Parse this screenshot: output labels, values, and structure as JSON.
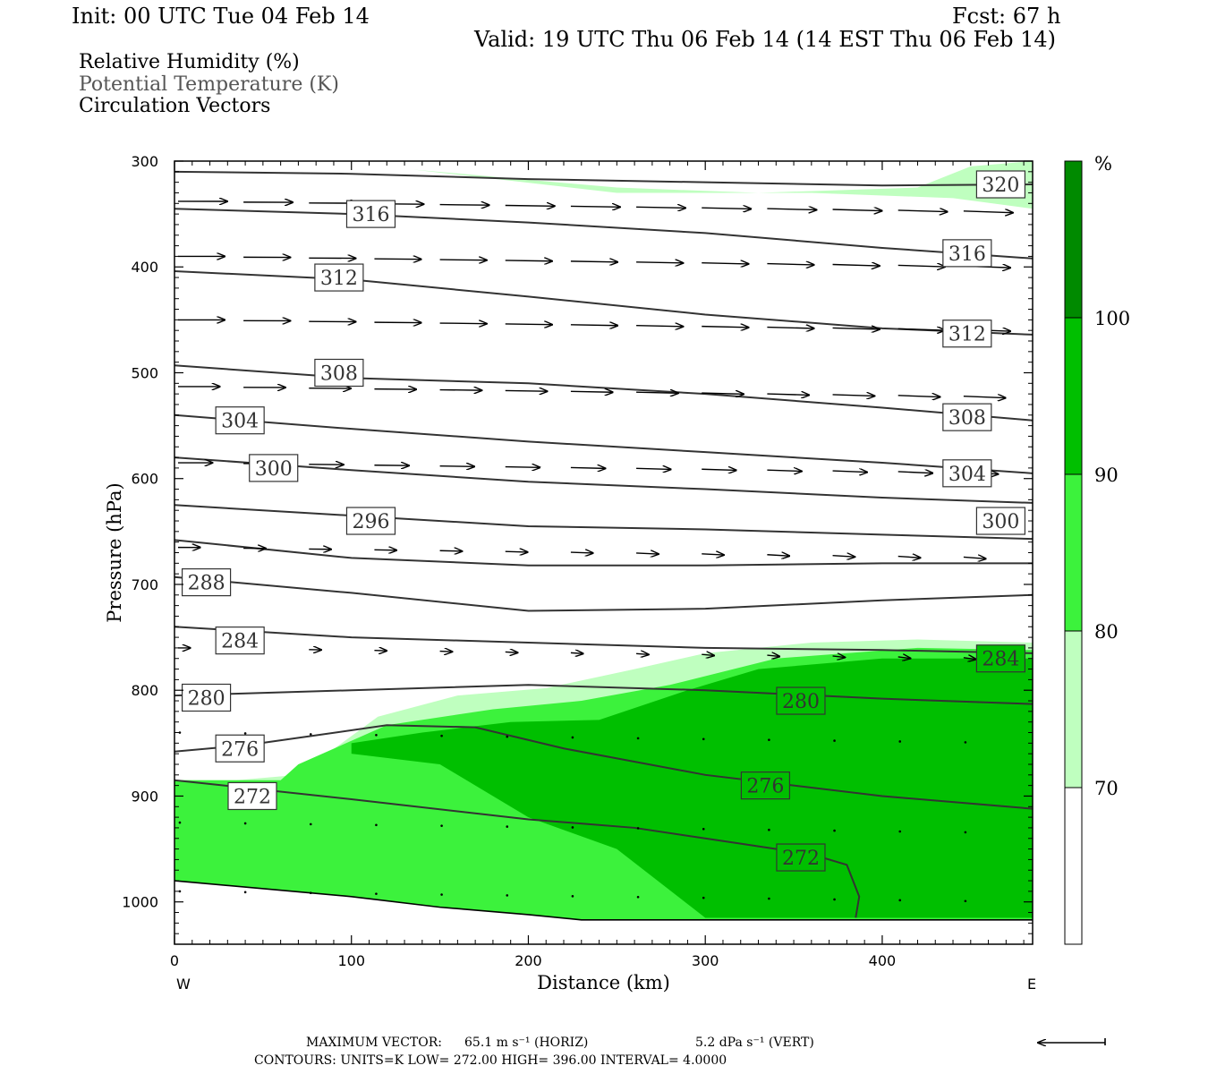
{
  "header": {
    "init": "Init: 00 UTC Tue 04 Feb 14",
    "fcst": "Fcst:   67 h",
    "valid": "Valid: 19 UTC Thu 06 Feb 14 (14 EST Thu 06 Feb 14)",
    "field1": "Relative Humidity (%)",
    "field2": "Potential Temperature (K)",
    "field3": "Circulation Vectors"
  },
  "footer": {
    "max_vector_label": "MAXIMUM VECTOR:",
    "max_horiz": "65.1 m s⁻¹ (HORIZ)",
    "max_vert": "5.2 dPa s⁻¹ (VERT)",
    "contours": "CONTOURS:  UNITS=K  LOW=  272.00        HIGH=  396.00        INTERVAL=     4.0000"
  },
  "colors": {
    "rh_70": "#bfffbf",
    "rh_80": "#3cf23c",
    "rh_90": "#00bf00",
    "rh_100": "#008a00",
    "contour": "#333333"
  },
  "chart_data": {
    "type": "cross-section",
    "xlabel": "Distance (km)",
    "ylabel": "Pressure (hPa)",
    "xlim": [
      0,
      485
    ],
    "ylim": [
      1040,
      300
    ],
    "x_ticks": [
      0,
      100,
      200,
      300,
      400
    ],
    "y_ticks": [
      300,
      400,
      500,
      600,
      700,
      800,
      900,
      1000
    ],
    "x_end_labels": {
      "left": "W",
      "right": "E"
    },
    "colorbar": {
      "unit": "%",
      "levels": [
        70,
        80,
        90,
        100
      ],
      "labels": [
        "70",
        "80",
        "90",
        "100"
      ]
    },
    "terrain_surface": [
      [
        0,
        980
      ],
      [
        100,
        995
      ],
      [
        150,
        1005
      ],
      [
        200,
        1012
      ],
      [
        230,
        1017
      ],
      [
        300,
        1017
      ],
      [
        400,
        1017
      ],
      [
        485,
        1017
      ]
    ],
    "rh_regions": [
      {
        "level": 70,
        "polygon": [
          [
            0,
            885
          ],
          [
            35,
            885
          ],
          [
            70,
            880
          ],
          [
            115,
            825
          ],
          [
            160,
            805
          ],
          [
            210,
            798
          ],
          [
            260,
            780
          ],
          [
            300,
            765
          ],
          [
            360,
            755
          ],
          [
            420,
            752
          ],
          [
            485,
            755
          ],
          [
            485,
            1040
          ],
          [
            0,
            1040
          ]
        ]
      },
      {
        "level": 80,
        "polygon": [
          [
            0,
            885
          ],
          [
            60,
            885
          ],
          [
            70,
            870
          ],
          [
            120,
            833
          ],
          [
            180,
            818
          ],
          [
            230,
            810
          ],
          [
            280,
            795
          ],
          [
            340,
            770
          ],
          [
            420,
            760
          ],
          [
            485,
            762
          ],
          [
            485,
            1018
          ],
          [
            0,
            1018
          ]
        ]
      },
      {
        "level": 90,
        "polygon": [
          [
            100,
            850
          ],
          [
            140,
            840
          ],
          [
            190,
            830
          ],
          [
            240,
            828
          ],
          [
            290,
            800
          ],
          [
            330,
            780
          ],
          [
            400,
            770
          ],
          [
            485,
            770
          ],
          [
            485,
            1015
          ],
          [
            300,
            1015
          ],
          [
            250,
            950
          ],
          [
            200,
            920
          ],
          [
            150,
            870
          ],
          [
            100,
            860
          ]
        ]
      },
      {
        "level": 70,
        "polygon": [
          [
            135,
            308
          ],
          [
            250,
            325
          ],
          [
            330,
            330
          ],
          [
            420,
            325
          ],
          [
            450,
            305
          ],
          [
            485,
            300
          ],
          [
            485,
            345
          ],
          [
            440,
            335
          ],
          [
            360,
            330
          ],
          [
            250,
            330
          ]
        ]
      }
    ],
    "theta_contours": [
      {
        "value": 272,
        "points": [
          [
            0,
            885
          ],
          [
            100,
            903
          ],
          [
            200,
            922
          ],
          [
            260,
            930
          ],
          [
            320,
            945
          ],
          [
            360,
            955
          ],
          [
            380,
            965
          ],
          [
            387,
            995
          ],
          [
            385,
            1015
          ]
        ],
        "label_x": 352
      },
      {
        "value": 276,
        "points": [
          [
            0,
            858
          ],
          [
            40,
            852
          ],
          [
            70,
            845
          ],
          [
            120,
            833
          ],
          [
            170,
            835
          ],
          [
            220,
            855
          ],
          [
            300,
            880
          ],
          [
            400,
            900
          ],
          [
            485,
            912
          ]
        ],
        "label_x": 322
      },
      {
        "value": 280,
        "points": [
          [
            0,
            805
          ],
          [
            100,
            800
          ],
          [
            200,
            795
          ],
          [
            300,
            800
          ],
          [
            400,
            808
          ],
          [
            485,
            813
          ]
        ],
        "label_x": 352
      },
      {
        "value": 284,
        "points": [
          [
            0,
            740
          ],
          [
            100,
            750
          ],
          [
            200,
            755
          ],
          [
            300,
            760
          ],
          [
            400,
            762
          ],
          [
            485,
            765
          ]
        ],
        "label_x": 453
      },
      {
        "value": 288,
        "points": [
          [
            0,
            693
          ],
          [
            100,
            708
          ],
          [
            200,
            725
          ],
          [
            300,
            723
          ],
          [
            400,
            715
          ],
          [
            485,
            710
          ]
        ],
        "label_x": 8
      },
      {
        "value": 292,
        "points": [
          [
            0,
            658
          ],
          [
            100,
            675
          ],
          [
            200,
            682
          ],
          [
            300,
            682
          ],
          [
            400,
            680
          ],
          [
            485,
            680
          ]
        ],
        "label_x": -100
      },
      {
        "value": 296,
        "points": [
          [
            0,
            625
          ],
          [
            100,
            635
          ],
          [
            200,
            645
          ],
          [
            300,
            648
          ],
          [
            400,
            653
          ],
          [
            485,
            657
          ]
        ],
        "label_x": 98
      },
      {
        "value": 300,
        "points": [
          [
            0,
            580
          ],
          [
            100,
            592
          ],
          [
            200,
            603
          ],
          [
            300,
            610
          ],
          [
            400,
            618
          ],
          [
            485,
            623
          ]
        ],
        "label_x": 453
      },
      {
        "value": 304,
        "points": [
          [
            0,
            540
          ],
          [
            100,
            553
          ],
          [
            200,
            565
          ],
          [
            300,
            575
          ],
          [
            400,
            585
          ],
          [
            485,
            595
          ]
        ],
        "label_x": 23
      },
      {
        "value": 308,
        "points": [
          [
            0,
            493
          ],
          [
            100,
            505
          ],
          [
            200,
            510
          ],
          [
            300,
            520
          ],
          [
            400,
            533
          ],
          [
            485,
            545
          ]
        ],
        "label_x": 80
      },
      {
        "value": 312,
        "points": [
          [
            0,
            404
          ],
          [
            100,
            412
          ],
          [
            200,
            428
          ],
          [
            300,
            445
          ],
          [
            400,
            458
          ],
          [
            485,
            464
          ]
        ],
        "label_x": 80
      },
      {
        "value": 316,
        "points": [
          [
            0,
            345
          ],
          [
            100,
            350
          ],
          [
            200,
            358
          ],
          [
            300,
            368
          ],
          [
            400,
            382
          ],
          [
            485,
            392
          ]
        ],
        "label_x": 98
      },
      {
        "value": 320,
        "points": [
          [
            0,
            310
          ],
          [
            100,
            312
          ],
          [
            200,
            317
          ],
          [
            300,
            320
          ],
          [
            400,
            323
          ],
          [
            485,
            322
          ]
        ],
        "label_x": 453
      }
    ],
    "contour_labels": [
      {
        "value": "272",
        "x": 44,
        "p": 900
      },
      {
        "value": "276",
        "x": 37,
        "p": 855
      },
      {
        "value": "280",
        "x": 18,
        "p": 807
      },
      {
        "value": "284",
        "x": 37,
        "p": 753
      },
      {
        "value": "288",
        "x": 18,
        "p": 698
      },
      {
        "value": "296",
        "x": 111,
        "p": 640
      },
      {
        "value": "300",
        "x": 56,
        "p": 590
      },
      {
        "value": "304",
        "x": 37,
        "p": 545
      },
      {
        "value": "308",
        "x": 93,
        "p": 500
      },
      {
        "value": "312",
        "x": 93,
        "p": 410
      },
      {
        "value": "316",
        "x": 111,
        "p": 350
      },
      {
        "value": "320",
        "x": 467,
        "p": 322
      },
      {
        "value": "316",
        "x": 448,
        "p": 387
      },
      {
        "value": "312",
        "x": 448,
        "p": 463
      },
      {
        "value": "308",
        "x": 448,
        "p": 542
      },
      {
        "value": "304",
        "x": 448,
        "p": 595
      },
      {
        "value": "300",
        "x": 467,
        "p": 640
      },
      {
        "value": "284",
        "x": 467,
        "p": 770
      },
      {
        "value": "280",
        "x": 354,
        "p": 810
      },
      {
        "value": "276",
        "x": 334,
        "p": 890
      },
      {
        "value": "272",
        "x": 354,
        "p": 958
      }
    ],
    "vector_rows": [
      {
        "p": 338,
        "x_start": 0,
        "x_end": 485,
        "dx_spacing": 37,
        "len": 1.0
      },
      {
        "p": 390,
        "x_start": 0,
        "x_end": 485,
        "dx_spacing": 37,
        "len": 0.95
      },
      {
        "p": 450,
        "x_start": 0,
        "x_end": 485,
        "dx_spacing": 37,
        "len": 0.95
      },
      {
        "p": 513,
        "x_start": 0,
        "x_end": 485,
        "dx_spacing": 37,
        "len": 0.85
      },
      {
        "p": 585,
        "x_start": 0,
        "x_end": 485,
        "dx_spacing": 37,
        "len": 0.7
      },
      {
        "p": 665,
        "x_start": 0,
        "x_end": 485,
        "dx_spacing": 37,
        "len": 0.45
      },
      {
        "p": 760,
        "x_start": 0,
        "x_end": 485,
        "dx_spacing": 37,
        "len": 0.25
      },
      {
        "p": 840,
        "x_start": 0,
        "x_end": 485,
        "dx_spacing": 37,
        "len": 0.05
      },
      {
        "p": 925,
        "x_start": 0,
        "x_end": 485,
        "dx_spacing": 37,
        "len": 0.05
      },
      {
        "p": 990,
        "x_start": 0,
        "x_end": 485,
        "dx_spacing": 37,
        "len": 0.03
      }
    ]
  }
}
